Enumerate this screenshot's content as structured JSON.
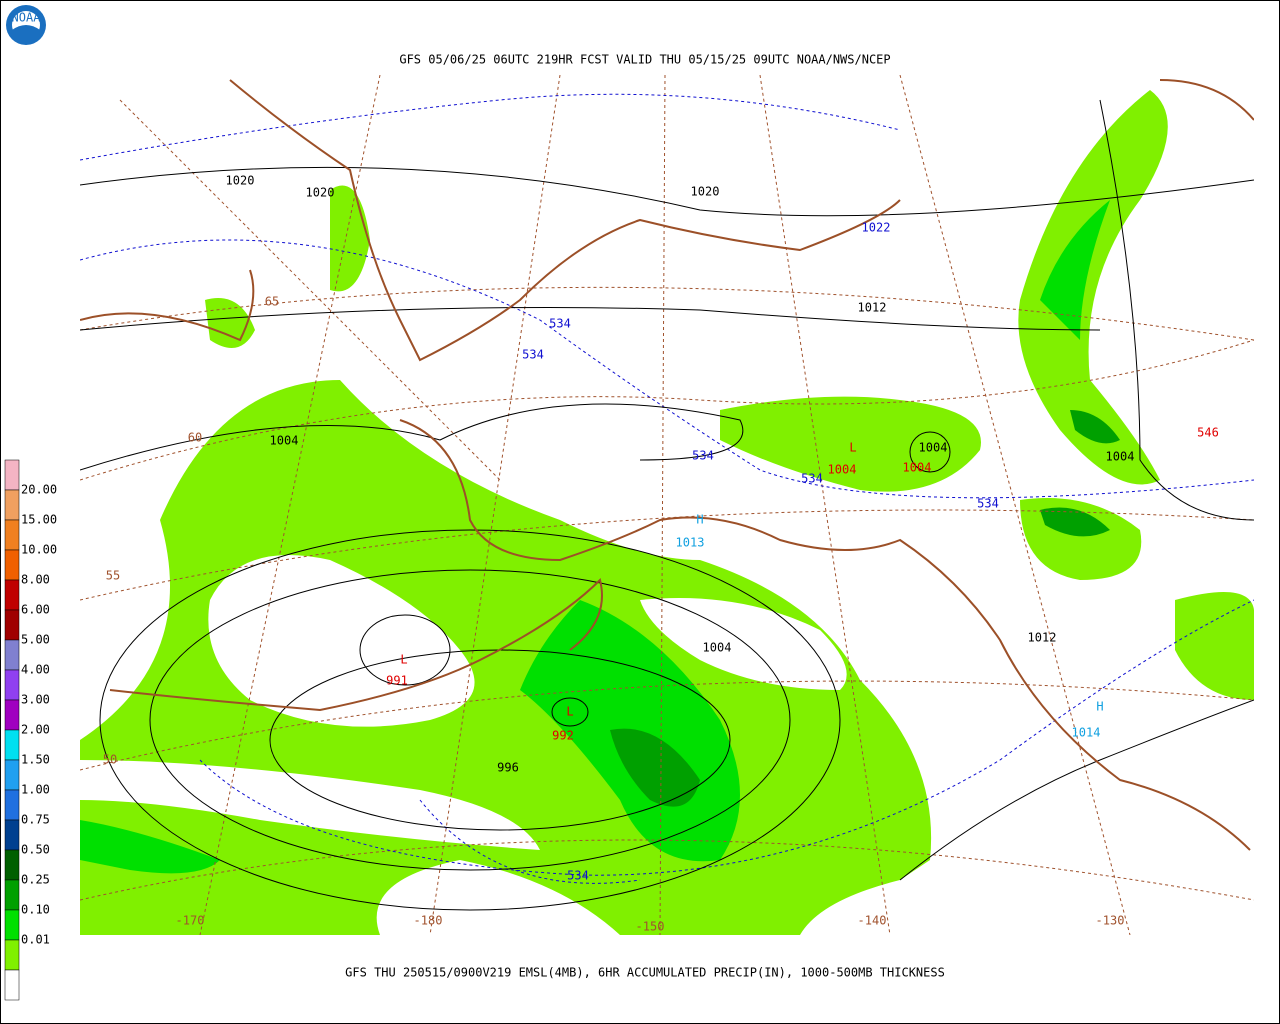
{
  "header": {
    "logo": "NOAA",
    "title": "GFS 05/06/25 06UTC 219HR FCST VALID THU 05/15/25 09UTC NOAA/NWS/NCEP"
  },
  "footer": {
    "caption": "GFS THU 250515/0900V219 EMSL(4MB), 6HR ACCUMULATED PRECIP(IN), 1000-500MB THICKNESS"
  },
  "legend": {
    "labels": [
      "20.00",
      "15.00",
      "10.00",
      "8.00",
      "6.00",
      "5.00",
      "4.00",
      "3.00",
      "2.00",
      "1.50",
      "1.00",
      "0.75",
      "0.50",
      "0.25",
      "0.10",
      "0.01"
    ]
  },
  "map": {
    "isobar_labels": [
      "1020",
      "1020",
      "1020",
      "1012",
      "1004",
      "1004",
      "1004",
      "1004",
      "996",
      "1012"
    ],
    "thickness_labels": [
      "534",
      "534",
      "534",
      "534",
      "534",
      "534",
      "546"
    ],
    "latitude_labels": [
      "65",
      "60",
      "55",
      "50"
    ],
    "longitude_labels": [
      "-170",
      "-180",
      "-150",
      "-140",
      "-130"
    ],
    "pressure_centers": [
      {
        "symbol": "L",
        "value": "991"
      },
      {
        "symbol": "L",
        "value": "992"
      },
      {
        "symbol": "L",
        "value": "1004"
      },
      {
        "symbol": "H",
        "value": "1014"
      },
      {
        "symbol": "H",
        "value": "1013"
      }
    ],
    "other_labels": [
      "1004",
      "1022"
    ]
  }
}
